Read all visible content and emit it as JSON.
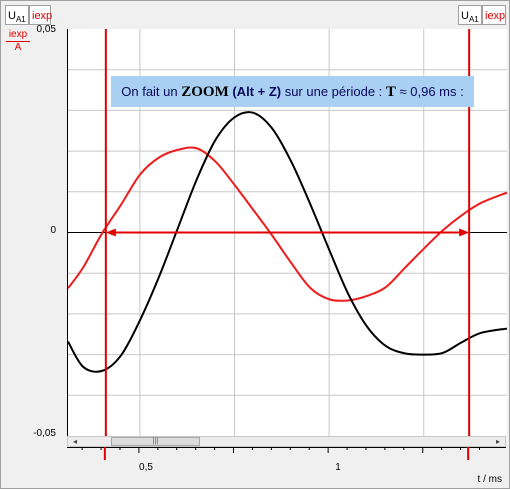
{
  "tabs": {
    "left_signal": "U",
    "left_signal_sub": "A1",
    "left_iexp": "iexp",
    "right_signal": "U",
    "right_signal_sub": "A1",
    "right_iexp": "iexp"
  },
  "y_label": {
    "num": "iexp",
    "den": "A"
  },
  "annotation": {
    "prefix": "On fait un ",
    "zoom": "ZOOM",
    "keys": " (Alt + Z)",
    "middle": " sur une période : ",
    "symbol": "T",
    "value": " ≈ 0,96 ms :"
  },
  "scrollbar": {
    "left_arrow": "◂",
    "right_arrow": "▸",
    "thumb_grip": "|||"
  },
  "colors": {
    "current": "#ee1c1c",
    "voltage": "#000000",
    "cursor": "#e00000",
    "grid": "#c8c8c8"
  },
  "chart_data": {
    "type": "line",
    "xlabel": "t / ms",
    "ylabel": "iexp / A",
    "xlim": [
      0.31,
      1.47
    ],
    "ylim": [
      -0.05,
      0.05
    ],
    "x_ticks": [
      "0,5",
      "1"
    ],
    "x_tick_values": [
      0.5,
      1.0
    ],
    "y_ticks": [
      "0,05",
      "0",
      "-0,05"
    ],
    "y_tick_values": [
      0.05,
      0.0,
      -0.05
    ],
    "grid": true,
    "series": [
      {
        "color": "#ee1c1c",
        "x": [
          0.31,
          0.35,
          0.4,
          0.45,
          0.5,
          0.55,
          0.6,
          0.65,
          0.7,
          0.75,
          0.8,
          0.85,
          0.9,
          0.95,
          1.0,
          1.05,
          1.1,
          1.15,
          1.2,
          1.25,
          1.3,
          1.35,
          1.4,
          1.47
        ],
        "y": [
          -0.0137,
          -0.0086,
          -0.0002,
          0.0068,
          0.0142,
          0.0184,
          0.0203,
          0.0207,
          0.0174,
          0.0117,
          0.0055,
          -0.0008,
          -0.0075,
          -0.0136,
          -0.0164,
          -0.0167,
          -0.0156,
          -0.0134,
          -0.0087,
          -0.004,
          0.0005,
          0.0042,
          0.0072,
          0.0098
        ]
      },
      {
        "color": "#000000",
        "x": [
          0.31,
          0.35,
          0.4,
          0.45,
          0.5,
          0.55,
          0.6,
          0.65,
          0.7,
          0.75,
          0.8,
          0.85,
          0.9,
          0.95,
          1.0,
          1.05,
          1.1,
          1.15,
          1.2,
          1.25,
          1.3,
          1.35,
          1.4,
          1.47
        ],
        "y": [
          -0.0268,
          -0.033,
          -0.034,
          -0.0302,
          -0.0216,
          -0.011,
          0.001,
          0.013,
          0.0228,
          0.0283,
          0.0294,
          0.0255,
          0.0174,
          0.007,
          -0.0042,
          -0.015,
          -0.0231,
          -0.0279,
          -0.0297,
          -0.03,
          -0.0296,
          -0.027,
          -0.0247,
          -0.0236
        ]
      }
    ],
    "cursors": {
      "x": [
        0.41,
        1.37
      ],
      "color": "#e00000",
      "arrow_y": 0.0
    }
  }
}
